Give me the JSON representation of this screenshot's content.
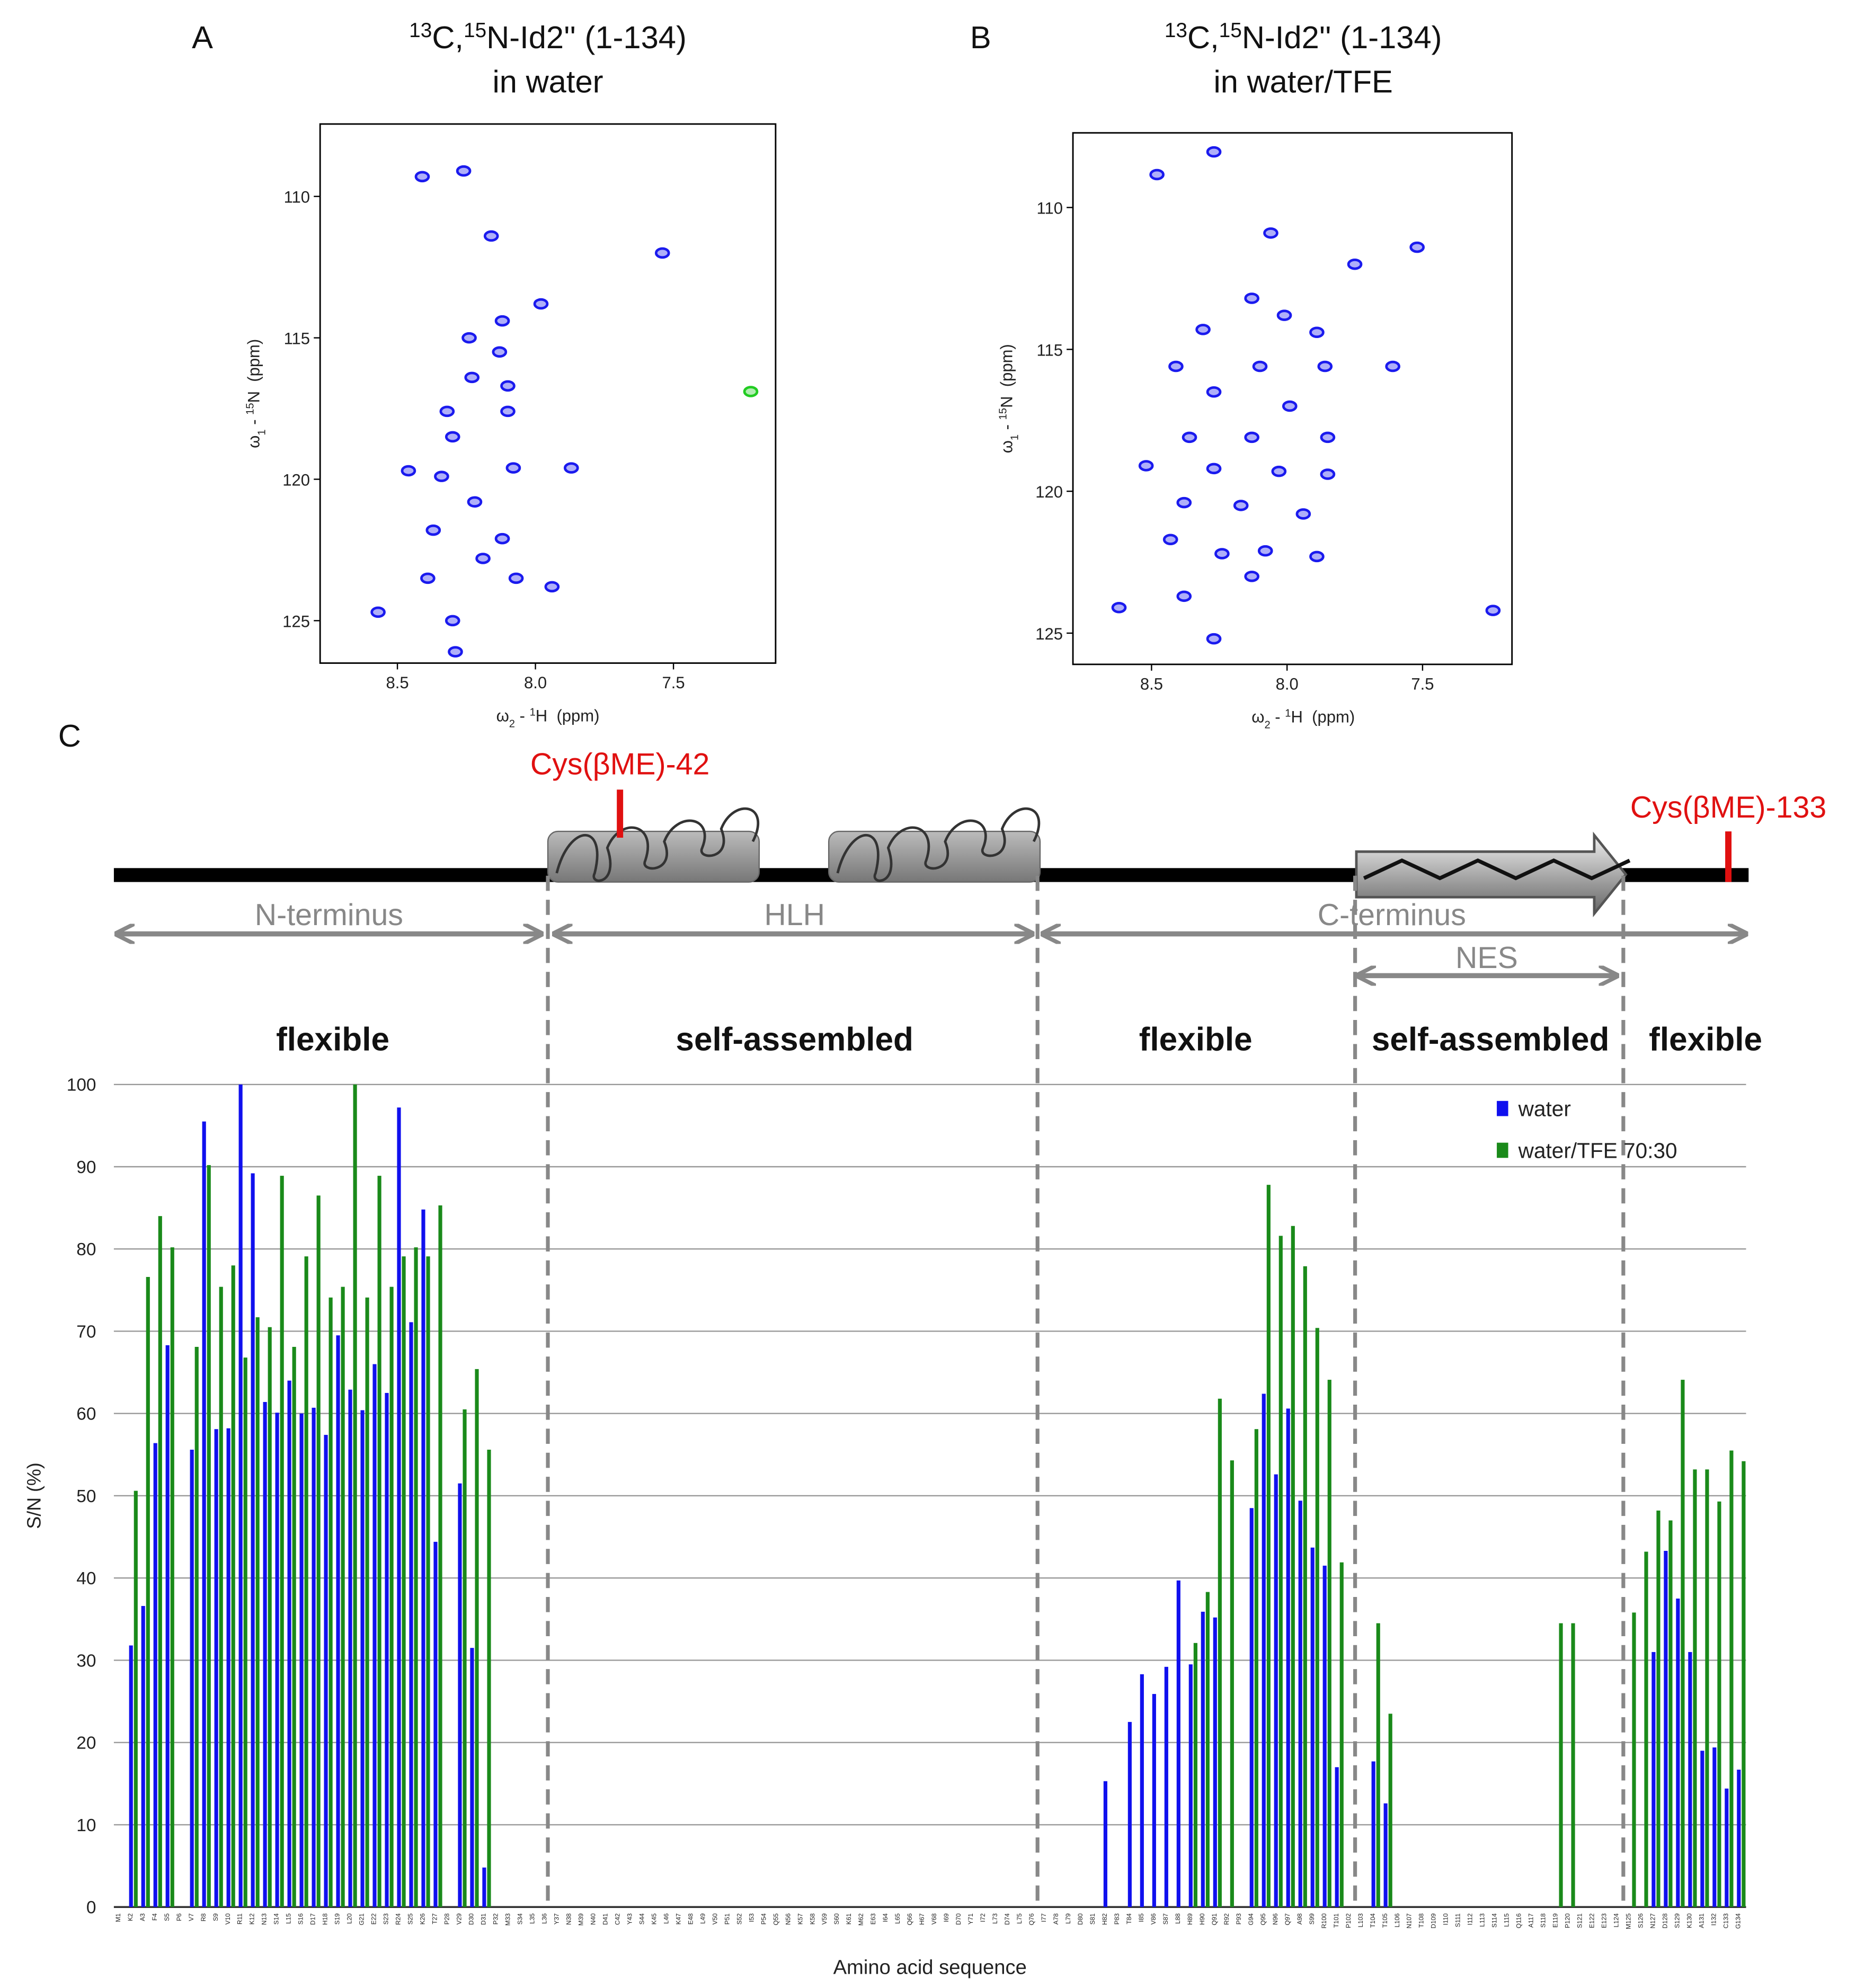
{
  "panel_labels": [
    "A",
    "B",
    "C"
  ],
  "diagram": {
    "cys_labels": [
      "Cys(βME)-42",
      "Cys(βME)-133"
    ],
    "domains": [
      "N-terminus",
      "HLH",
      "C-terminus",
      "NES"
    ],
    "regions": [
      "flexible",
      "self-assembled",
      "flexible",
      "self-assembled",
      "flexible"
    ]
  },
  "chart_data": [
    {
      "type": "scatter",
      "title": [
        "13",
        "C,",
        "15",
        "N-Id2'' (1-134)"
      ],
      "subtitle": "in water",
      "xlabel": [
        "ω",
        "2",
        " - ",
        "1",
        "H  (ppm)"
      ],
      "ylabel": [
        "ω",
        "1",
        " - ",
        "15",
        "N  (ppm)"
      ],
      "xlim": [
        7.13,
        8.78
      ],
      "xreverse": true,
      "ylim": [
        107.44,
        126.5
      ],
      "yreverse": true,
      "xticks": [
        8.5,
        {
          "value": 8,
          "label": "8.0"
        },
        7.5
      ],
      "yticks": [
        110,
        115,
        120,
        125
      ],
      "series": [
        {
          "color": "#1a1aee",
          "x": [
            8.41,
            8.26,
            8.16,
            7.54,
            7.98,
            8.12,
            8.24,
            8.13,
            8.23,
            8.1,
            8.32,
            8.1,
            8.3,
            8.46,
            8.34,
            8.08,
            7.87,
            8.22,
            8.37,
            8.12,
            8.19,
            8.39,
            8.07,
            7.94,
            8.57,
            8.3,
            8.29
          ],
          "values": [
            109.3,
            109.1,
            111.4,
            112.0,
            113.8,
            114.4,
            115.0,
            115.5,
            116.4,
            116.7,
            117.6,
            117.6,
            118.5,
            119.7,
            119.9,
            119.6,
            119.6,
            120.8,
            121.8,
            122.1,
            122.8,
            123.5,
            123.5,
            123.8,
            124.7,
            125.0,
            126.1
          ]
        },
        {
          "color": "#22cc22",
          "x": [
            7.22
          ],
          "values": [
            116.9
          ]
        }
      ]
    },
    {
      "type": "scatter",
      "title": [
        "13",
        "C,",
        "15",
        "N-Id2'' (1-134)"
      ],
      "subtitle": "in water/TFE",
      "xlabel": [
        "ω",
        "2",
        " - ",
        "1",
        "H  (ppm)"
      ],
      "ylabel": [
        "ω",
        "1",
        " - ",
        "15",
        "N  (ppm)"
      ],
      "xlim": [
        7.17,
        8.79
      ],
      "xreverse": true,
      "ylim": [
        107.37,
        126.1
      ],
      "yreverse": true,
      "xticks": [
        8.5,
        {
          "value": 8,
          "label": "8.0"
        },
        7.5
      ],
      "yticks": [
        110,
        115,
        120,
        125
      ],
      "series": [
        {
          "color": "#1a1aee",
          "x": [
            8.48,
            8.27,
            8.06,
            7.52,
            7.75,
            8.13,
            8.01,
            8.31,
            7.89,
            8.41,
            8.1,
            7.86,
            7.61,
            8.27,
            7.99,
            8.36,
            8.13,
            7.85,
            8.52,
            8.27,
            8.03,
            7.85,
            8.38,
            8.17,
            7.94,
            8.43,
            8.24,
            8.08,
            7.89,
            8.38,
            8.13,
            8.62,
            7.24,
            8.27
          ],
          "values": [
            108.84,
            108.04,
            110.9,
            111.4,
            112.0,
            113.2,
            113.8,
            114.3,
            114.4,
            115.6,
            115.6,
            115.6,
            115.6,
            116.5,
            117.0,
            118.1,
            118.1,
            118.1,
            119.1,
            119.2,
            119.3,
            119.4,
            120.4,
            120.5,
            120.8,
            121.7,
            122.2,
            122.1,
            122.3,
            123.7,
            123.0,
            124.1,
            124.2,
            125.2
          ]
        }
      ]
    },
    {
      "type": "bar",
      "ylabel": "S/N (%)",
      "xlabel": "Amino acid sequence",
      "ylim": [
        0,
        100
      ],
      "yticks": [
        0,
        10,
        20,
        30,
        40,
        50,
        60,
        70,
        80,
        90,
        100
      ],
      "grid": true,
      "legend": "top-right",
      "categories": [
        "M1",
        "K2",
        "A3",
        "F4",
        "S5",
        "P6",
        "V7",
        "R8",
        "S9",
        "V10",
        "R11",
        "K12",
        "N13",
        "S14",
        "L15",
        "S16",
        "D17",
        "H18",
        "S19",
        "L20",
        "G21",
        "E22",
        "S23",
        "R24",
        "S25",
        "K26",
        "T27",
        "P28",
        "V29",
        "D30",
        "D31",
        "P32",
        "M33",
        "S34",
        "L35",
        "L36",
        "Y37",
        "N38",
        "M39",
        "N40",
        "D41",
        "C42",
        "Y43",
        "S44",
        "K45",
        "L46",
        "K47",
        "E48",
        "L49",
        "V50",
        "P51",
        "S52",
        "I53",
        "P54",
        "Q55",
        "N56",
        "K57",
        "K58",
        "V59",
        "S60",
        "K61",
        "M62",
        "E63",
        "I64",
        "L65",
        "Q66",
        "H67",
        "V68",
        "I69",
        "D70",
        "Y71",
        "I72",
        "L73",
        "D74",
        "L75",
        "Q76",
        "I77",
        "A78",
        "L79",
        "D80",
        "S81",
        "H82",
        "P83",
        "T84",
        "I85",
        "V86",
        "S87",
        "L88",
        "H89",
        "H90",
        "Q91",
        "R92",
        "P93",
        "G94",
        "Q95",
        "N96",
        "Q97",
        "A98",
        "S99",
        "R100",
        "T101",
        "P102",
        "L103",
        "T104",
        "T105",
        "L106",
        "N107",
        "T108",
        "D109",
        "I110",
        "S111",
        "I112",
        "L113",
        "S114",
        "L115",
        "Q116",
        "A117",
        "S118",
        "E119",
        "P120",
        "S121",
        "E122",
        "E123",
        "L124",
        "M125",
        "S126",
        "N127",
        "D128",
        "S129",
        "K130",
        "A131",
        "I132",
        "C133",
        "G134"
      ],
      "series": [
        {
          "name": "water",
          "color": "#1010ee",
          "values": [
            null,
            31.8,
            36.6,
            56.4,
            68.3,
            null,
            55.6,
            95.5,
            58.1,
            58.2,
            100,
            89.2,
            61.4,
            60.1,
            64,
            60,
            60.7,
            57.4,
            69.5,
            62.9,
            60.4,
            66,
            62.5,
            97.2,
            71.1,
            84.8,
            44.4,
            null,
            51.5,
            31.5,
            4.8,
            null,
            null,
            null,
            null,
            null,
            null,
            null,
            null,
            null,
            null,
            null,
            null,
            null,
            null,
            null,
            null,
            null,
            null,
            null,
            null,
            null,
            null,
            null,
            null,
            null,
            null,
            null,
            null,
            null,
            null,
            null,
            null,
            null,
            null,
            null,
            null,
            null,
            null,
            null,
            null,
            null,
            null,
            null,
            null,
            null,
            null,
            null,
            null,
            null,
            null,
            15.3,
            null,
            22.5,
            28.3,
            25.9,
            29.2,
            39.7,
            29.5,
            35.9,
            35.2,
            null,
            null,
            48.5,
            62.4,
            52.6,
            60.6,
            49.4,
            43.7,
            41.5,
            17,
            null,
            null,
            17.7,
            12.6,
            null,
            null,
            null,
            null,
            null,
            null,
            null,
            null,
            null,
            null,
            null,
            null,
            null,
            null,
            null,
            null,
            null,
            null,
            null,
            null,
            null,
            31.0,
            43.3,
            37.5,
            31,
            19,
            19.4,
            14.4,
            16.7
          ]
        },
        {
          "name": "water/TFE 70:30",
          "color": "#1a8a1a",
          "values": [
            null,
            50.6,
            76.6,
            84,
            80.2,
            null,
            68.1,
            90.2,
            75.4,
            78,
            66.8,
            71.7,
            70.5,
            88.9,
            68.1,
            79.1,
            86.5,
            74.1,
            75.4,
            100,
            74.1,
            88.9,
            75.4,
            79.1,
            80.2,
            79.1,
            85.3,
            null,
            60.5,
            65.4,
            55.6,
            null,
            null,
            null,
            null,
            null,
            null,
            null,
            null,
            null,
            null,
            null,
            null,
            null,
            null,
            null,
            null,
            null,
            null,
            null,
            null,
            null,
            null,
            null,
            null,
            null,
            null,
            null,
            null,
            null,
            null,
            null,
            null,
            null,
            null,
            null,
            null,
            null,
            null,
            null,
            null,
            null,
            null,
            null,
            null,
            null,
            null,
            null,
            null,
            null,
            null,
            null,
            null,
            null,
            null,
            null,
            null,
            null,
            32.1,
            38.3,
            61.8,
            54.3,
            null,
            58.1,
            87.8,
            81.6,
            82.8,
            77.9,
            70.4,
            64.1,
            41.9,
            null,
            null,
            34.5,
            23.5,
            null,
            null,
            null,
            null,
            null,
            null,
            null,
            null,
            null,
            null,
            null,
            null,
            null,
            34.5,
            34.5,
            null,
            null,
            null,
            null,
            35.8,
            43.2,
            48.2,
            47,
            64.1,
            53.2,
            53.2,
            49.3,
            55.5,
            54.2
          ]
        }
      ]
    }
  ]
}
